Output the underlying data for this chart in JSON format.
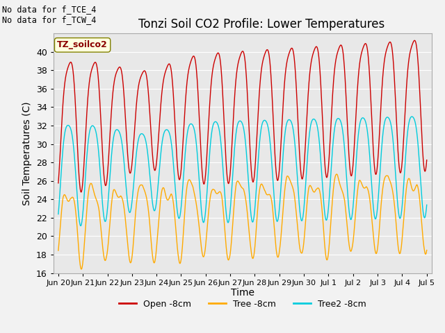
{
  "title": "Tonzi Soil CO2 Profile: Lower Temperatures",
  "xlabel": "Time",
  "ylabel": "Soil Temperatures (C)",
  "ylim": [
    16,
    42
  ],
  "yticks": [
    16,
    18,
    20,
    22,
    24,
    26,
    28,
    30,
    32,
    34,
    36,
    38,
    40
  ],
  "annotation_lines": [
    "No data for f_TCE_4",
    "No data for f_TCW_4"
  ],
  "legend_box_label": "TZ_soilco2",
  "legend_entries": [
    "Open -8cm",
    "Tree -8cm",
    "Tree2 -8cm"
  ],
  "background_color": "#e8e8e8",
  "figure_color": "#f2f2f2",
  "grid_color": "#ffffff",
  "line_colors": [
    "#cc0000",
    "#ffaa00",
    "#00ccdd"
  ],
  "x_tick_labels": [
    "Jun 20",
    "Jun 21",
    "Jun 22",
    "Jun 23",
    "Jun 24",
    "Jun 25",
    "Jun 26",
    "Jun 27",
    "Jun 28",
    "Jun 29",
    "Jun 30",
    "Jul 1",
    "Jul 2",
    "Jul 3",
    "Jul 4",
    "Jul 5"
  ],
  "n_points": 1500
}
